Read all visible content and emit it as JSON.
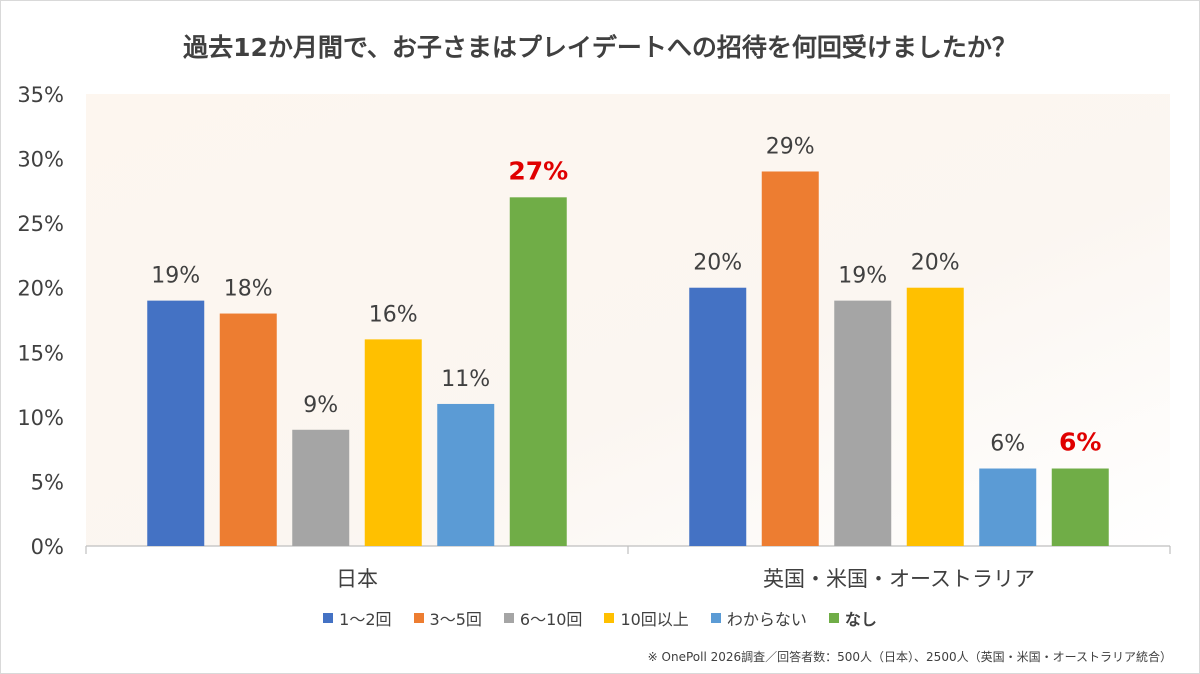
{
  "chart_data": {
    "type": "bar",
    "title": "過去12か月間で、お子さまはプレイデートへの招待を何回受けましたか？",
    "categories": [
      "日本",
      "英国・米国・オーストラリア"
    ],
    "y_ticks": [
      "0%",
      "5%",
      "10%",
      "15%",
      "20%",
      "25%",
      "30%",
      "35%"
    ],
    "ylim": [
      0,
      35
    ],
    "series": [
      {
        "name": "1～2回",
        "color": "#4472C4",
        "values": [
          19,
          20
        ],
        "labels": [
          "19%",
          "20%"
        ]
      },
      {
        "name": "3～5回",
        "color": "#ED7D31",
        "values": [
          18,
          29
        ],
        "labels": [
          "18%",
          "29%"
        ]
      },
      {
        "name": "6～10回",
        "color": "#A5A5A5",
        "values": [
          9,
          19
        ],
        "labels": [
          "9%",
          "19%"
        ]
      },
      {
        "name": "10回以上",
        "color": "#FFC000",
        "values": [
          16,
          20
        ],
        "labels": [
          "16%",
          "20%"
        ]
      },
      {
        "name": "わからない",
        "color": "#5B9BD5",
        "values": [
          11,
          6
        ],
        "labels": [
          "11%",
          "6%"
        ]
      },
      {
        "name": "なし",
        "color": "#70AD47",
        "values": [
          27,
          6
        ],
        "labels": [
          "27%",
          "6%"
        ],
        "highlight_color": "#E00000"
      }
    ],
    "legend_position": "bottom",
    "grid": false
  },
  "footnote": "※ OnePoll 2026調査／回答者数：500人（日本）、2500人（英国・米国・オーストラリア統合）"
}
